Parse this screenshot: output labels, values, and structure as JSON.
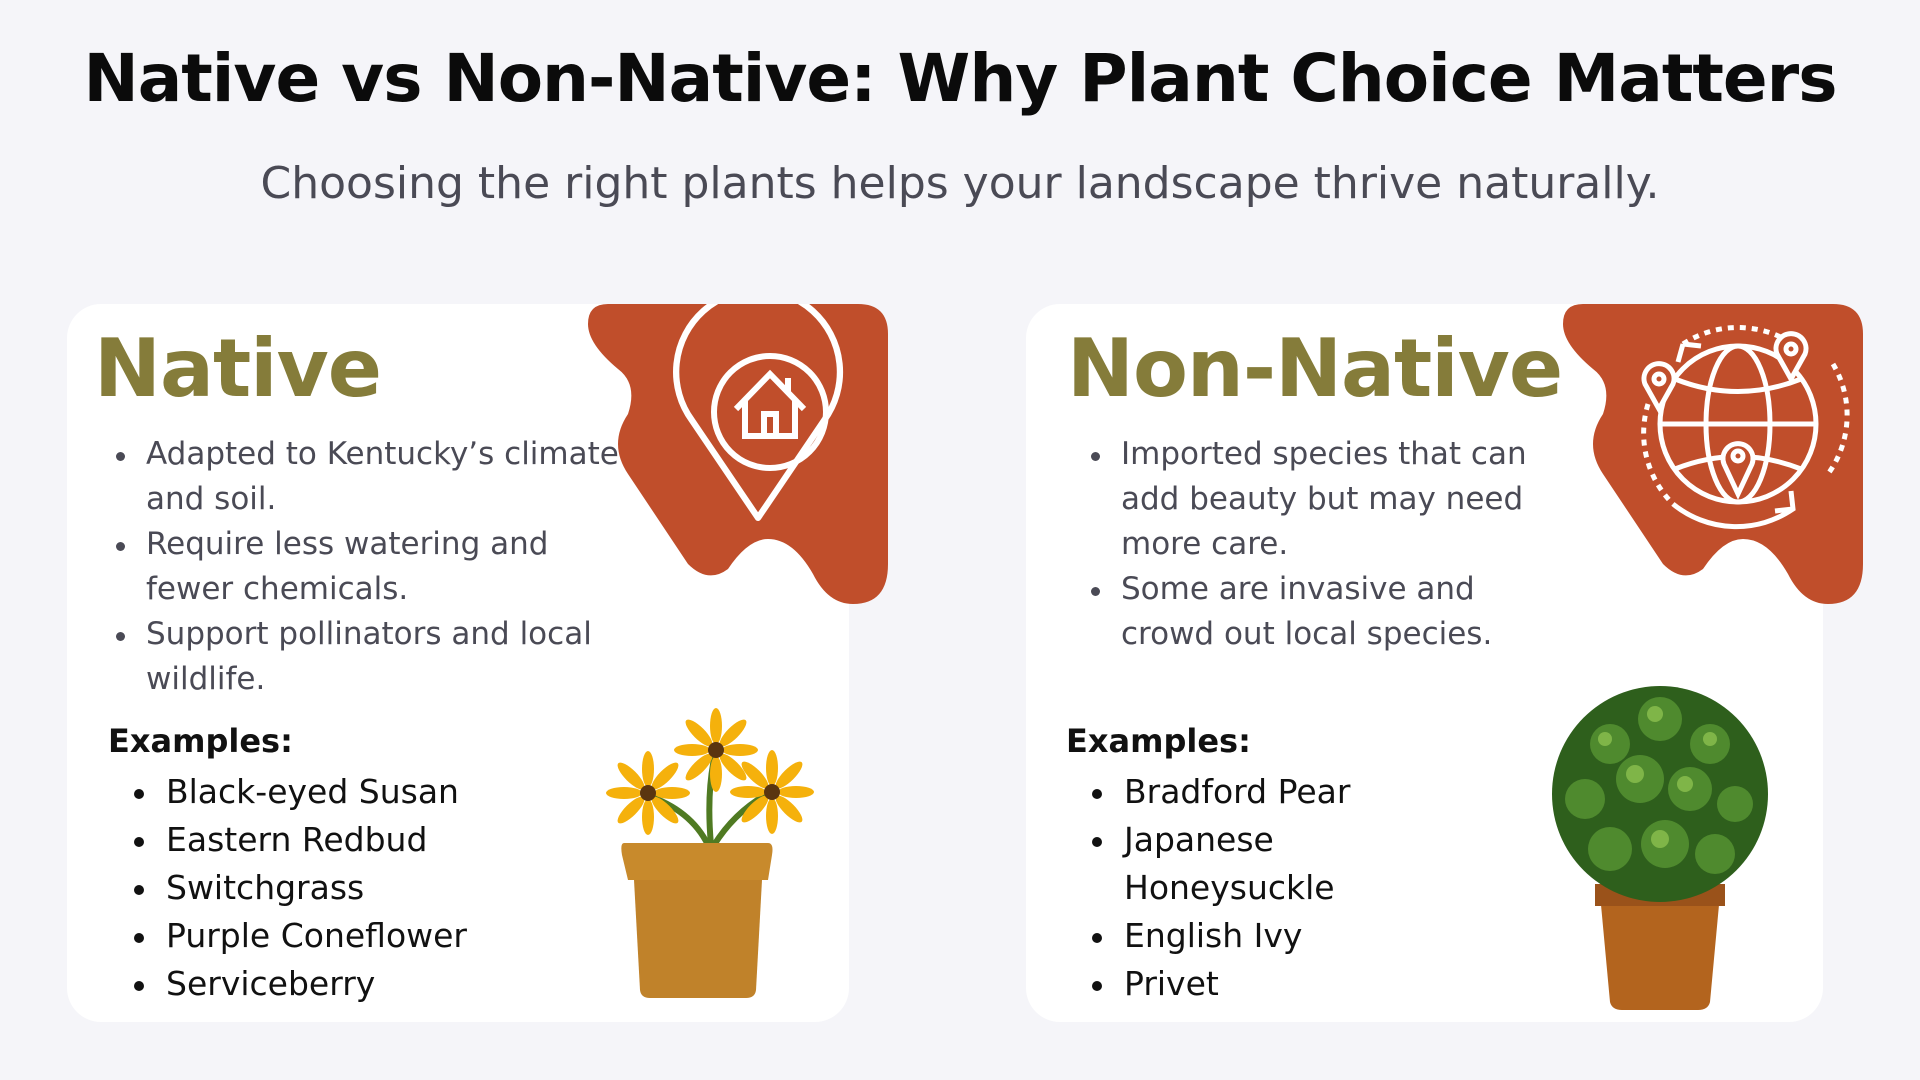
{
  "header": {
    "title": "Native vs Non-Native: Why Plant Choice Matters",
    "subtitle": "Choosing the right plants helps your landscape thrive naturally."
  },
  "colors": {
    "accent": "#c04e2b",
    "heading": "#857c3a",
    "background": "#f5f5f9"
  },
  "native": {
    "heading": "Native",
    "icon": "home-location-pin-icon",
    "bullets": [
      "Adapted to Kentucky’s climate and soil.",
      "Require less watering and fewer chemicals.",
      "Support pollinators and local wildlife."
    ],
    "examples_label": "Examples:",
    "examples": [
      "Black-eyed Susan",
      "Eastern Redbud",
      "Switchgrass",
      "Purple Coneflower",
      "Serviceberry"
    ],
    "image": "potted-yellow-flowers"
  },
  "non_native": {
    "heading": "Non-Native",
    "icon": "globe-locations-icon",
    "bullets": [
      "Imported species that can add beauty but may need more care.",
      "Some are invasive and crowd out local species."
    ],
    "examples_label": "Examples:",
    "examples": [
      "Bradford Pear",
      "Japanese Honeysuckle",
      "English Ivy",
      "Privet"
    ],
    "image": "potted-topiary-shrub"
  }
}
